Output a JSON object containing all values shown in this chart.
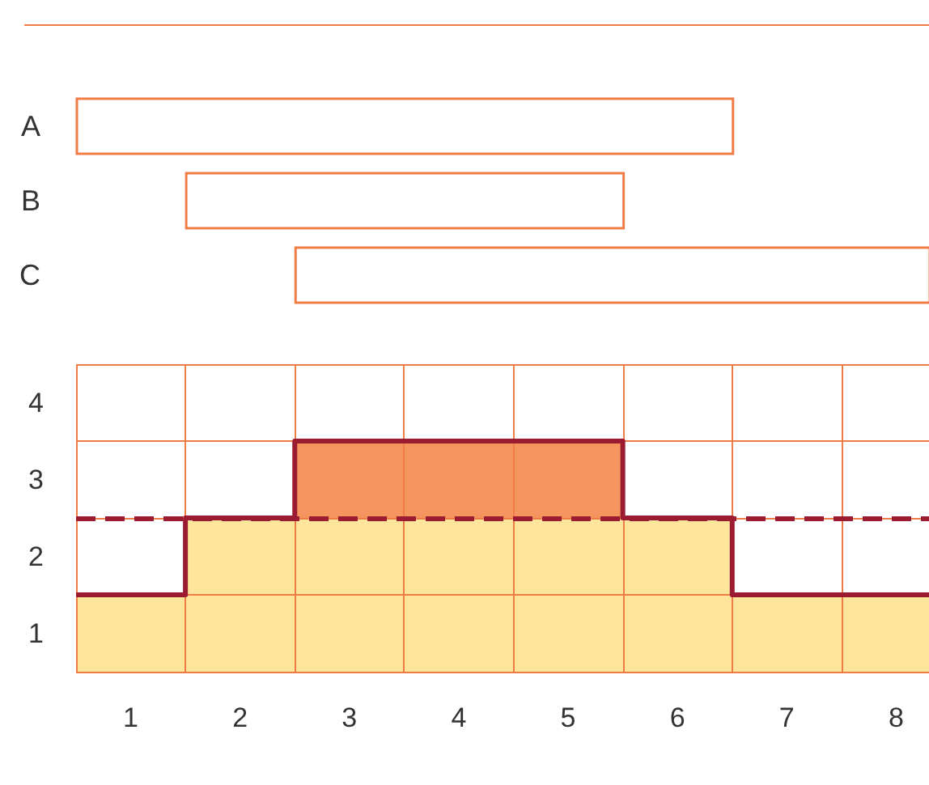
{
  "chart_data": [
    {
      "type": "bar",
      "orientation": "horizontal",
      "categories": [
        "A",
        "B",
        "C"
      ],
      "base": [
        0.5,
        1.5,
        2.5
      ],
      "values": [
        6,
        4,
        5.8
      ],
      "color": "#ef7d45",
      "xlim": [
        0.5,
        8.3
      ],
      "tick_labels": "y",
      "grid": false
    },
    {
      "type": "area",
      "x": [
        0.5,
        1.5,
        2.5,
        3.5,
        4.5,
        5.5,
        6.5,
        7.5,
        8.3
      ],
      "series": [
        {
          "color": "#f5955e",
          "values": [
            null,
            null,
            3.5,
            3.5,
            3.5,
            3.5,
            null,
            null,
            null
          ]
        },
        {
          "color": "#fde69b",
          "values": [
            1.5,
            2.5,
            2.5,
            2.5,
            2.5,
            2.5,
            1.5,
            1.5,
            1.5
          ]
        },
        {
          "type": "step",
          "color": "#9b1b30",
          "values": [
            1.5,
            2.5,
            3.5,
            3.5,
            3.5,
            2.5,
            1.5,
            1.5,
            1.5
          ]
        }
      ],
      "xlim": [
        0.5,
        8.3
      ],
      "ylim": [
        0.5,
        4.5
      ],
      "xticks": [
        {
          "value": 0.5,
          "label": null
        },
        1,
        {
          "value": 1.5,
          "label": null
        },
        2,
        {
          "value": 2.5,
          "label": null
        },
        3,
        {
          "value": 3.5,
          "label": null
        },
        4,
        {
          "value": 4.5,
          "label": null
        },
        5,
        {
          "value": 5.5,
          "label": null
        },
        6,
        {
          "value": 6.5,
          "label": null
        },
        7,
        {
          "value": 7.5,
          "label": null
        },
        8
      ],
      "yticks": [
        {
          "value": 0.5,
          "label": null
        },
        1,
        {
          "value": 1.5,
          "label": null
        },
        2,
        {
          "value": 2.5,
          "label": null
        },
        3,
        {
          "value": 3.5,
          "label": null
        },
        4,
        {
          "value": 4.5,
          "label": null
        }
      ],
      "grid": true,
      "marker": "none",
      "ref_lines": [
        {
          "axis": "y",
          "value": 2.5,
          "color": "#9b1b30",
          "line_style": "dashed"
        }
      ]
    }
  ]
}
